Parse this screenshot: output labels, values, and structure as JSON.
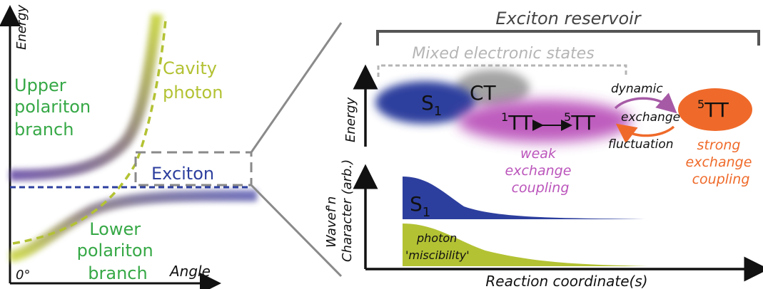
{
  "colors": {
    "black": "#111111",
    "gray": "#8a8a8a",
    "light_gray": "#b5b5b5",
    "green": "#36a846",
    "yellow_green": "#b3c233",
    "blue": "#2d3f9e",
    "purple": "#a65aa6",
    "orange": "#ef6a2a",
    "magenta": "#bb55bb"
  },
  "left_panel": {
    "y_axis_label": "Energy",
    "x_axis_label": "Angle",
    "origin_label": "0°",
    "upper_branch_label": [
      "Upper",
      "polariton",
      "branch"
    ],
    "cavity_label": [
      "Cavity",
      "photon"
    ],
    "exciton_label": "Exciton",
    "lower_branch_label": [
      "Lower",
      "polariton",
      "branch"
    ]
  },
  "right_panel": {
    "reservoir_label": "Exciton reservoir",
    "mixed_label": "Mixed electronic states",
    "energy_axis_label": "Energy",
    "s1_label": "S",
    "s1_sub": "1",
    "ct_label": "CT",
    "tt1_label": "TT",
    "tt1_sup": "1",
    "tt5_label": "TT",
    "tt5_sup": "5",
    "tt5_strong_label": "TT",
    "tt5_strong_sup": "5",
    "dynamic_label": "dynamic",
    "exchange_label": "exchange",
    "fluctuation_label": "fluctuation",
    "weak_label": [
      "weak",
      "exchange",
      "coupling"
    ],
    "strong_label": [
      "strong",
      "exchange",
      "coupling"
    ],
    "wavefn_axis_label": [
      "Wavef'n",
      "Character (arb.)"
    ],
    "s1_wave_label": "S",
    "s1_wave_sub": "1",
    "photon_label": [
      "photon",
      "'miscibility'"
    ],
    "x_axis_label": "Reaction coordinate(s)"
  }
}
